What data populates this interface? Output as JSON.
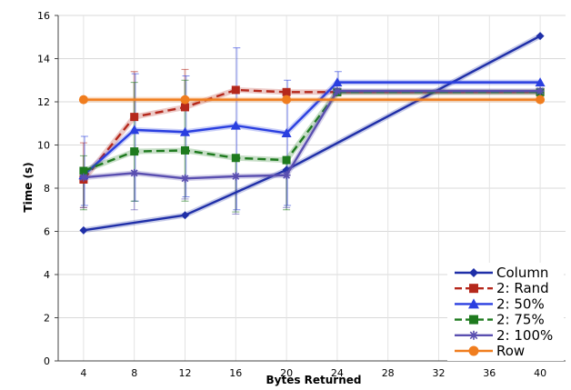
{
  "chart_data": {
    "type": "line",
    "title": "",
    "xlabel": "Bytes Returned",
    "ylabel": "Time (s)",
    "x_ticks": [
      "4",
      "8",
      "12",
      "16",
      "20",
      "24",
      "28",
      "32",
      "36",
      "40"
    ],
    "y_ticks": [
      "0",
      "2",
      "4",
      "6",
      "8",
      "10",
      "12",
      "14",
      "16"
    ],
    "xlim": [
      2,
      42
    ],
    "ylim": [
      0,
      16
    ],
    "grid": true,
    "legend": "bottom-right",
    "series": [
      {
        "name": "Column",
        "color": "#1f2fa8",
        "marker": "diamond",
        "dash": "solid",
        "x": [
          4,
          12,
          20,
          40
        ],
        "y": [
          6.05,
          6.75,
          8.85,
          15.05
        ]
      },
      {
        "name": "2: Rand",
        "color": "#b5281c",
        "marker": "square",
        "dash": "dashed",
        "x": [
          4,
          8,
          12,
          16,
          20,
          24,
          40
        ],
        "y": [
          8.4,
          11.3,
          11.75,
          12.55,
          12.45,
          12.45,
          12.45
        ],
        "error_up": [
          10.1,
          13.4,
          13.5,
          null,
          null,
          null,
          null
        ],
        "error_down": [
          7.1,
          null,
          null,
          null,
          null,
          null,
          null
        ]
      },
      {
        "name": "2: 50%",
        "color": "#2a3fe0",
        "marker": "triangle",
        "dash": "solid",
        "x": [
          4,
          8,
          12,
          16,
          20,
          24,
          40
        ],
        "y": [
          8.6,
          10.7,
          10.6,
          10.9,
          10.55,
          12.9,
          12.9
        ],
        "error_up": [
          10.4,
          13.3,
          13.2,
          14.5,
          13.0,
          13.4,
          null
        ],
        "error_down": [
          7.2,
          7.4,
          7.6,
          7.0,
          7.2,
          null,
          null
        ]
      },
      {
        "name": "2: 75%",
        "color": "#1e7a1e",
        "marker": "square",
        "dash": "dashed",
        "x": [
          4,
          8,
          12,
          16,
          20,
          24,
          40
        ],
        "y": [
          8.8,
          9.7,
          9.75,
          9.4,
          9.3,
          12.45,
          12.45
        ],
        "error_up": [
          9.5,
          12.9,
          13.0,
          null,
          null,
          null,
          null
        ],
        "error_down": [
          7.0,
          7.4,
          7.4,
          6.9,
          7.0,
          null,
          null
        ]
      },
      {
        "name": "2: 100%",
        "color": "#5a4fb0",
        "marker": "star",
        "dash": "solid",
        "x": [
          4,
          8,
          12,
          16,
          20,
          24,
          40
        ],
        "y": [
          8.5,
          8.7,
          8.45,
          8.55,
          8.6,
          12.5,
          12.5
        ],
        "error_up": [
          null,
          null,
          null,
          null,
          null,
          null,
          null
        ],
        "error_down": [
          7.1,
          7.0,
          7.5,
          6.8,
          7.1,
          null,
          null
        ]
      },
      {
        "name": "Row",
        "color": "#f07d1e",
        "marker": "circle",
        "dash": "solid",
        "x": [
          4,
          12,
          20,
          40
        ],
        "y": [
          12.1,
          12.1,
          12.1,
          12.1
        ]
      }
    ]
  }
}
